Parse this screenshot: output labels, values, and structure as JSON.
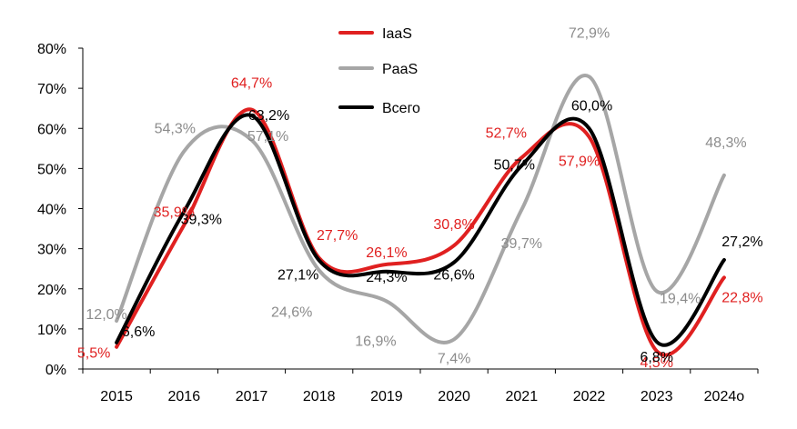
{
  "chart_data": {
    "type": "line",
    "title": "",
    "xlabel": "",
    "ylabel": "",
    "categories": [
      "2015",
      "2016",
      "2017",
      "2018",
      "2019",
      "2020",
      "2021",
      "2022",
      "2023",
      "2024о"
    ],
    "ylim": [
      0,
      80
    ],
    "yticks": [
      "0%",
      "10%",
      "20%",
      "30%",
      "40%",
      "50%",
      "60%",
      "70%",
      "80%"
    ],
    "grid": false,
    "legend_position": "top-center",
    "series": [
      {
        "name": "IaaS",
        "color": "#E02020",
        "label_color": "#E02020",
        "values": [
          5.5,
          35.9,
          64.7,
          27.7,
          26.1,
          30.8,
          52.7,
          57.9,
          4.5,
          22.8
        ],
        "labels": [
          "5,5%",
          "35,9%",
          "64,7%",
          "27,7%",
          "26,1%",
          "30,8%",
          "52,7%",
          "57,9%",
          "4,5%",
          "22,8%"
        ]
      },
      {
        "name": "PaaS",
        "color": "#A6A6A6",
        "label_color": "#8C8C8C",
        "values": [
          12.0,
          54.3,
          57.1,
          24.6,
          16.9,
          7.4,
          39.7,
          72.9,
          19.4,
          48.3
        ],
        "labels": [
          "12,0%",
          "54,3%",
          "57,1%",
          "24,6%",
          "16,9%",
          "7,4%",
          "39,7%",
          "72,9%",
          "19,4%",
          "48,3%"
        ]
      },
      {
        "name": "Всего",
        "color": "#000000",
        "label_color": "#000000",
        "values": [
          6.6,
          39.3,
          63.2,
          27.1,
          24.3,
          26.6,
          50.7,
          60.0,
          6.8,
          27.2
        ],
        "labels": [
          "6,6%",
          "39,3%",
          "63,2%",
          "27,1%",
          "24,3%",
          "26,6%",
          "50,7%",
          "60,0%",
          "6,8%",
          "27,2%"
        ]
      }
    ]
  }
}
